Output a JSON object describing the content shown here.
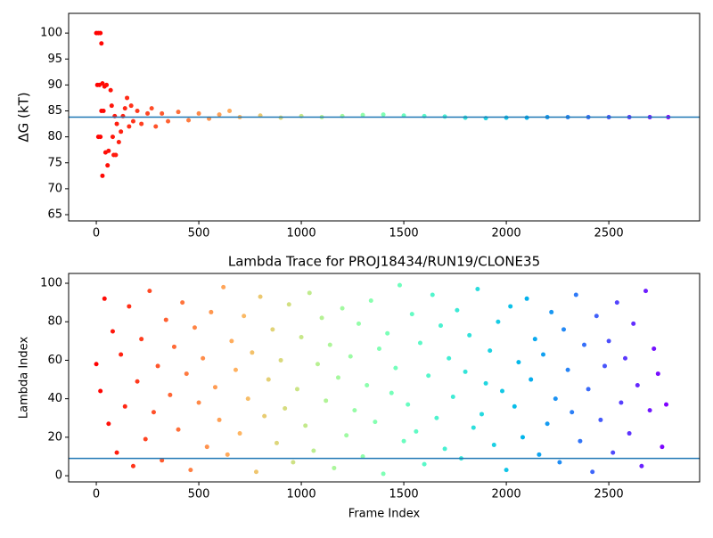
{
  "chart_data": [
    {
      "type": "scatter",
      "ylabel": "ΔG (kT)",
      "colormap": "rainbow_r",
      "marker_size": 2.5,
      "x": [
        0,
        10,
        20,
        25,
        5,
        15,
        30,
        40,
        50,
        10,
        20,
        25,
        35,
        30,
        45,
        55,
        60,
        70,
        75,
        80,
        85,
        95,
        90,
        100,
        110,
        120,
        130,
        140,
        150,
        160,
        170,
        180,
        200,
        220,
        250,
        270,
        290,
        320,
        350,
        400,
        450,
        500,
        550,
        600,
        650,
        700,
        800,
        900,
        1000,
        1100,
        1200,
        1300,
        1400,
        1500,
        1600,
        1700,
        1800,
        1900,
        2000,
        2100,
        2200,
        2300,
        2400,
        2500,
        2600,
        2700,
        2790
      ],
      "values": [
        100,
        100,
        100,
        98,
        90,
        90,
        90.3,
        89.7,
        90,
        80,
        80,
        85,
        85,
        72.5,
        77,
        74.5,
        77.3,
        89,
        86,
        80,
        76.5,
        76.5,
        84,
        82.5,
        79,
        81,
        84,
        85.5,
        87.5,
        82,
        86,
        83,
        85,
        82.5,
        84.5,
        85.5,
        82,
        84.5,
        83,
        84.8,
        83.2,
        84.5,
        83.5,
        84.3,
        85,
        83.8,
        84.1,
        83.7,
        84,
        83.8,
        84,
        84.2,
        84.3,
        84.1,
        84,
        83.9,
        83.7,
        83.6,
        83.7,
        83.7,
        83.8,
        83.8,
        83.8,
        83.8,
        83.8,
        83.8,
        83.8
      ],
      "hline": 83.8,
      "hline_color": "#1f77b4",
      "xlim": [
        -135,
        2943
      ],
      "xticks": [
        0,
        500,
        1000,
        1500,
        2000,
        2500
      ],
      "ylim": [
        63.8,
        103.8
      ],
      "yticks": [
        65,
        70,
        75,
        80,
        85,
        90,
        95,
        100
      ]
    },
    {
      "type": "scatter",
      "title": "Lambda Trace for PROJ18434/RUN19/CLONE35",
      "xlabel": "Frame Index",
      "ylabel": "Lambda Index",
      "colormap": "rainbow_r",
      "marker_size": 2.5,
      "x": [
        0,
        20,
        40,
        60,
        80,
        100,
        120,
        140,
        160,
        180,
        200,
        220,
        240,
        260,
        280,
        300,
        320,
        340,
        360,
        380,
        400,
        420,
        440,
        460,
        480,
        500,
        520,
        540,
        560,
        580,
        600,
        620,
        640,
        660,
        680,
        700,
        720,
        740,
        760,
        780,
        800,
        820,
        840,
        860,
        880,
        900,
        920,
        940,
        960,
        980,
        1000,
        1020,
        1040,
        1060,
        1080,
        1100,
        1120,
        1140,
        1160,
        1180,
        1200,
        1220,
        1240,
        1260,
        1280,
        1300,
        1320,
        1340,
        1360,
        1380,
        1400,
        1420,
        1440,
        1460,
        1480,
        1500,
        1520,
        1540,
        1560,
        1580,
        1600,
        1620,
        1640,
        1660,
        1680,
        1700,
        1720,
        1740,
        1760,
        1780,
        1800,
        1820,
        1840,
        1860,
        1880,
        1900,
        1920,
        1940,
        1960,
        1980,
        2000,
        2020,
        2040,
        2060,
        2080,
        2100,
        2120,
        2140,
        2160,
        2180,
        2200,
        2220,
        2240,
        2260,
        2280,
        2300,
        2320,
        2340,
        2360,
        2380,
        2400,
        2420,
        2440,
        2460,
        2480,
        2500,
        2520,
        2540,
        2560,
        2580,
        2600,
        2620,
        2640,
        2660,
        2680,
        2700,
        2720,
        2740,
        2760,
        2780
      ],
      "values": [
        58,
        44,
        92,
        27,
        75,
        12,
        63,
        36,
        88,
        5,
        49,
        71,
        19,
        96,
        33,
        57,
        8,
        81,
        42,
        67,
        24,
        90,
        53,
        3,
        77,
        38,
        61,
        15,
        85,
        46,
        29,
        98,
        11,
        70,
        55,
        22,
        83,
        40,
        64,
        2,
        93,
        31,
        50,
        76,
        17,
        60,
        35,
        89,
        7,
        45,
        72,
        26,
        95,
        13,
        58,
        82,
        39,
        68,
        4,
        51,
        87,
        21,
        62,
        34,
        79,
        10,
        47,
        91,
        28,
        66,
        1,
        74,
        43,
        56,
        99,
        18,
        37,
        84,
        23,
        69,
        6,
        52,
        94,
        30,
        78,
        14,
        61,
        41,
        86,
        9,
        54,
        73,
        25,
        97,
        32,
        48,
        65,
        16,
        80,
        44,
        3,
        88,
        36,
        59,
        20,
        92,
        50,
        71,
        11,
        63,
        27,
        85,
        40,
        7,
        76,
        55,
        33,
        94,
        18,
        68,
        45,
        2,
        83,
        29,
        57,
        70,
        12,
        90,
        38,
        61,
        22,
        79,
        47,
        5,
        96,
        34,
        66,
        53,
        15,
        37
      ],
      "hline": 9,
      "hline_color": "#1f77b4",
      "xlim": [
        -135,
        2943
      ],
      "xticks": [
        0,
        500,
        1000,
        1500,
        2000,
        2500
      ],
      "ylim": [
        -3.2,
        105.1
      ],
      "yticks": [
        0,
        20,
        40,
        60,
        80,
        100
      ]
    }
  ]
}
